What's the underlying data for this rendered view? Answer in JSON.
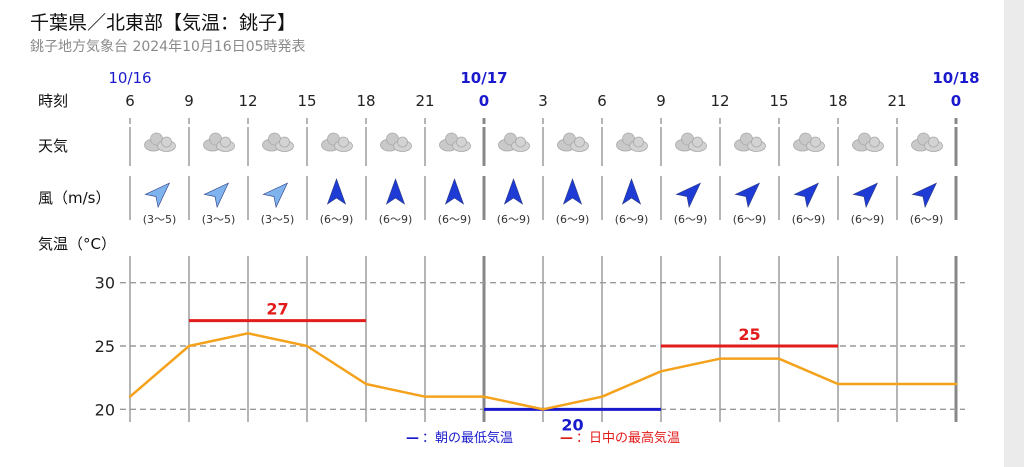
{
  "header": {
    "title": "千葉県／北東部【気温：銚子】",
    "subtitle": "銚子地方気象台 2024年10月16日05時発表"
  },
  "rows": {
    "time_label": "時刻",
    "weather_label": "天気",
    "wind_label": "風（m/s）",
    "temp_label": "気温（°C）"
  },
  "dates": [
    {
      "label": "10/16",
      "index": 0,
      "bold": false
    },
    {
      "label": "10/17",
      "index": 6,
      "bold": true
    },
    {
      "label": "10/18",
      "index": 14,
      "bold": true
    }
  ],
  "colors": {
    "date": "#1a1acc",
    "line": "#f4a21c",
    "max": "#e21b1b",
    "min": "#1a1acc",
    "wind_light": "#7fb3ee",
    "wind_dark": "#1f3bd6"
  },
  "chart_data": {
    "type": "line",
    "x": [
      "6",
      "9",
      "12",
      "15",
      "18",
      "21",
      "0",
      "3",
      "6",
      "9",
      "12",
      "15",
      "18",
      "21",
      "0"
    ],
    "series": [
      {
        "values": [
          21,
          25,
          26,
          25,
          22,
          21,
          21,
          20,
          21,
          23,
          24,
          24,
          22,
          22,
          22
        ]
      }
    ],
    "weather": [
      "cloudy-icon",
      "cloudy-icon",
      "cloudy-icon",
      "cloudy-icon",
      "cloudy-icon",
      "cloudy-icon",
      "cloudy-icon",
      "cloudy-icon",
      "cloudy-icon",
      "cloudy-icon",
      "cloudy-icon",
      "cloudy-icon",
      "cloudy-icon",
      "cloudy-icon"
    ],
    "wind": [
      {
        "speed": "(3〜5)",
        "dir": "northeast",
        "strength": "light"
      },
      {
        "speed": "(3〜5)",
        "dir": "northeast",
        "strength": "light"
      },
      {
        "speed": "(3〜5)",
        "dir": "northeast",
        "strength": "light"
      },
      {
        "speed": "(6〜9)",
        "dir": "north",
        "strength": "strong"
      },
      {
        "speed": "(6〜9)",
        "dir": "north",
        "strength": "strong"
      },
      {
        "speed": "(6〜9)",
        "dir": "north",
        "strength": "strong"
      },
      {
        "speed": "(6〜9)",
        "dir": "north",
        "strength": "strong"
      },
      {
        "speed": "(6〜9)",
        "dir": "north",
        "strength": "strong"
      },
      {
        "speed": "(6〜9)",
        "dir": "north",
        "strength": "strong"
      },
      {
        "speed": "(6〜9)",
        "dir": "northeast",
        "strength": "strong"
      },
      {
        "speed": "(6〜9)",
        "dir": "northeast",
        "strength": "strong"
      },
      {
        "speed": "(6〜9)",
        "dir": "northeast",
        "strength": "strong"
      },
      {
        "speed": "(6〜9)",
        "dir": "northeast",
        "strength": "strong"
      },
      {
        "speed": "(6〜9)",
        "dir": "northeast",
        "strength": "strong"
      }
    ],
    "max_temps": [
      {
        "value": 27,
        "from_index": 1,
        "to_index": 4
      },
      {
        "value": 25,
        "from_index": 9,
        "to_index": 12
      }
    ],
    "min_temps": [
      {
        "value": 20,
        "from_index": 6,
        "to_index": 9
      }
    ],
    "yticks": [
      20,
      25,
      30
    ],
    "ylim": [
      19,
      31
    ],
    "grid": true,
    "legend": [
      {
        "marker": "—",
        "text": "：朝の最低気温",
        "color": "#1a1acc"
      },
      {
        "marker": "—",
        "text": "：日中の最高気温",
        "color": "#e21b1b"
      }
    ]
  }
}
